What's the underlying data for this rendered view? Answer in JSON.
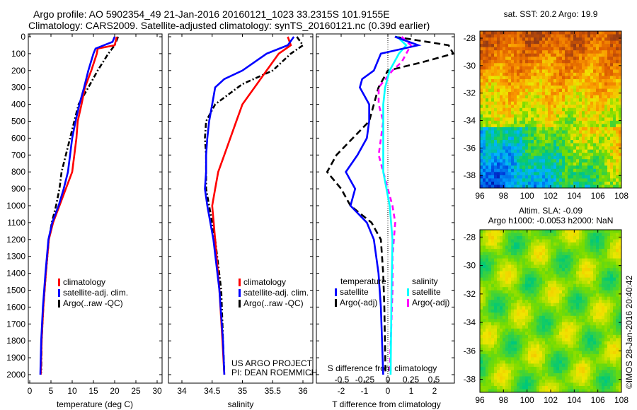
{
  "header": {
    "line1": "Argo profile: AO 5902354_49 21-Jan-2016 20160121_1023 33.2315S 101.9155E",
    "line2": "Climatology: CARS2009. Satellite-adjusted climatology: synTS_20160121.nc (0.39d earlier)"
  },
  "colors": {
    "climatology": "#ff0000",
    "satellite": "#0000ff",
    "argo": "#000000",
    "sal_satellite": "#00ffff",
    "sal_argo": "#ff00ff"
  },
  "chart_data": [
    {
      "type": "line",
      "name": "temperature",
      "xlabel": "temperature (deg C)",
      "xlim": [
        -1,
        32
      ],
      "ylim": [
        2060,
        0
      ],
      "xticks": [
        "0",
        "5",
        "10",
        "15",
        "20",
        "25",
        "30"
      ],
      "yticks": [
        "0",
        "100",
        "200",
        "300",
        "400",
        "500",
        "600",
        "700",
        "800",
        "900",
        "1000",
        "1100",
        "1200",
        "1300",
        "1400",
        "1500",
        "1600",
        "1700",
        "1800",
        "1900",
        "2000"
      ],
      "legend": [
        "climatology",
        "satellite-adj. clim.",
        "Argo(..raw -QC)"
      ],
      "series": [
        {
          "name": "climatology",
          "depth": [
            0,
            50,
            70,
            100,
            200,
            300,
            400,
            500,
            600,
            700,
            800,
            900,
            1000,
            1100,
            1200,
            1400,
            1600,
            1800,
            2000
          ],
          "values": [
            20.5,
            20,
            16,
            15.8,
            14.5,
            13,
            12.2,
            11.3,
            11,
            10.5,
            10,
            8.5,
            7,
            5.5,
            4.5,
            3.8,
            3.2,
            2.8,
            2.6
          ]
        },
        {
          "name": "satellite-adj. clim.",
          "depth": [
            0,
            30,
            70,
            100,
            200,
            300,
            400,
            500,
            600,
            700,
            800,
            900,
            1000,
            1100,
            1200,
            1400,
            1600,
            1800,
            2000
          ],
          "values": [
            20,
            19.5,
            15.5,
            15,
            13.8,
            12.8,
            11.7,
            10.8,
            10,
            9.5,
            9,
            8,
            6.8,
            5.3,
            4.4,
            3.7,
            3.1,
            2.7,
            2.5
          ]
        },
        {
          "name": "Argo(..raw -QC)",
          "depth": [
            0,
            50,
            100,
            200,
            300,
            400,
            500,
            600,
            700,
            800,
            900,
            1000,
            1100,
            1200,
            1400,
            1600,
            1800,
            1990
          ],
          "values": [
            20.8,
            20,
            18.5,
            16,
            13.8,
            11.5,
            10.5,
            9.5,
            8.5,
            7.5,
            7,
            6.2,
            5.2,
            4.5,
            3.8,
            3.2,
            2.8,
            2.7
          ]
        }
      ]
    },
    {
      "type": "line",
      "name": "salinity",
      "xlabel": "salinity",
      "xlim": [
        33.7,
        36.1
      ],
      "ylim": [
        2060,
        0
      ],
      "xticks": [
        "34",
        "34.5",
        "35",
        "35.5",
        "36"
      ],
      "legend": [
        "climatology",
        "satellite-adj. clim.",
        "Argo(..raw -QC)"
      ],
      "annotation": [
        "US ARGO PROJECT",
        "PI: DEAN ROEMMICH"
      ],
      "series": [
        {
          "name": "climatology",
          "depth": [
            0,
            50,
            100,
            200,
            300,
            400,
            500,
            600,
            700,
            800,
            900,
            1000,
            1200,
            1500,
            1800,
            2000
          ],
          "values": [
            35.75,
            35.8,
            35.6,
            35.4,
            35.2,
            35.0,
            34.9,
            34.8,
            34.7,
            34.6,
            34.55,
            34.5,
            34.55,
            34.62,
            34.67,
            34.7
          ]
        },
        {
          "name": "satellite-adj. clim.",
          "depth": [
            0,
            50,
            100,
            200,
            250,
            300,
            400,
            500,
            600,
            700,
            800,
            900,
            1000,
            1200,
            1500,
            1800,
            2000
          ],
          "values": [
            35.85,
            35.75,
            35.4,
            35.0,
            34.7,
            34.55,
            34.5,
            34.45,
            34.42,
            34.4,
            34.4,
            34.38,
            34.42,
            34.52,
            34.62,
            34.68,
            34.7
          ]
        },
        {
          "name": "Argo(..raw -QC)",
          "depth": [
            0,
            50,
            100,
            200,
            280,
            400,
            500,
            600,
            700,
            800,
            900,
            1000,
            1200,
            1500,
            1800,
            1990
          ],
          "values": [
            35.9,
            36.0,
            35.8,
            35.5,
            35.0,
            34.55,
            34.4,
            34.38,
            34.4,
            34.4,
            34.4,
            34.45,
            34.55,
            34.65,
            34.68,
            34.7
          ]
        }
      ]
    },
    {
      "type": "line",
      "name": "difference",
      "xlabel": "T difference from climatology",
      "x2label": "S difference from climatology",
      "xlim": [
        -3,
        3
      ],
      "x2lim": [
        -0.77,
        0.77
      ],
      "ylim": [
        2060,
        0
      ],
      "xticks": [
        "-2",
        "-1",
        "0",
        "1",
        "2"
      ],
      "x2ticks": [
        "-0.5",
        "-0.25",
        "0",
        "0.25",
        "0.5"
      ],
      "legend_titles": [
        "temperature",
        "salinity"
      ],
      "legend": [
        "satellite",
        "Argo(-adj)",
        "satellite",
        "Argo(-adj)"
      ],
      "series": [
        {
          "name": "T satellite",
          "axis": "T",
          "depth": [
            0,
            50,
            100,
            200,
            250,
            300,
            400,
            500,
            600,
            700,
            800,
            850,
            900,
            1000,
            1100,
            1200,
            1400,
            1600,
            2000
          ],
          "values": [
            0.3,
            1.3,
            -0.3,
            -0.6,
            -1.1,
            -1.2,
            -0.8,
            -0.8,
            -0.9,
            -1.3,
            -1.8,
            -1.6,
            -1.4,
            -1.6,
            -0.9,
            -0.6,
            -0.4,
            -0.3,
            -0.2
          ]
        },
        {
          "name": "T Argo(-adj)",
          "axis": "T",
          "depth": [
            0,
            50,
            100,
            150,
            200,
            300,
            400,
            500,
            600,
            700,
            800,
            900,
            1000,
            1100,
            1200,
            1400,
            1600,
            1990
          ],
          "values": [
            0.3,
            2.6,
            2.8,
            1.5,
            0,
            -0.4,
            -0.6,
            -0.8,
            -1.5,
            -2.2,
            -2.6,
            -2.0,
            -1.6,
            -0.7,
            -0.3,
            -0.2,
            -0.15,
            -0.1
          ]
        },
        {
          "name": "S satellite",
          "axis": "S",
          "depth": [
            0,
            50,
            100,
            200,
            300,
            400,
            600,
            800,
            1000,
            1200,
            1500,
            2000
          ],
          "values": [
            0.1,
            0.2,
            0.12,
            0.02,
            -0.03,
            -0.05,
            -0.05,
            -0.05,
            0.02,
            0.05,
            0.04,
            0.03
          ]
        },
        {
          "name": "S Argo(-adj)",
          "axis": "S",
          "depth": [
            0,
            50,
            100,
            150,
            200,
            300,
            400,
            500,
            700,
            800,
            1000,
            1100,
            1300,
            1500,
            1990
          ],
          "values": [
            0.15,
            0.25,
            0.2,
            0.15,
            0.05,
            -0.1,
            -0.1,
            -0.05,
            -0.1,
            -0.05,
            0.05,
            0.08,
            0.05,
            0.05,
            0.02
          ]
        }
      ]
    },
    {
      "type": "heatmap",
      "name": "sst-map",
      "title": "sat. SST: 20.2 Argo: 19.9",
      "xticks": [
        "96",
        "98",
        "100",
        "102",
        "104",
        "106",
        "108"
      ],
      "yticks": [
        "-28",
        "-30",
        "-32",
        "-34",
        "-36",
        "-38"
      ]
    },
    {
      "type": "heatmap",
      "name": "sla-map",
      "title": "Altim. SLA: -0.09",
      "subtitle": "Argo h1000: -0.0053 h2000: NaN",
      "xticks": [
        "96",
        "98",
        "100",
        "102",
        "104",
        "106",
        "108"
      ],
      "yticks": [
        "-28",
        "-30",
        "-32",
        "-34",
        "-36",
        "-38"
      ],
      "watermark": "©IMOS 28-Jan-2016 20:40:42"
    }
  ]
}
